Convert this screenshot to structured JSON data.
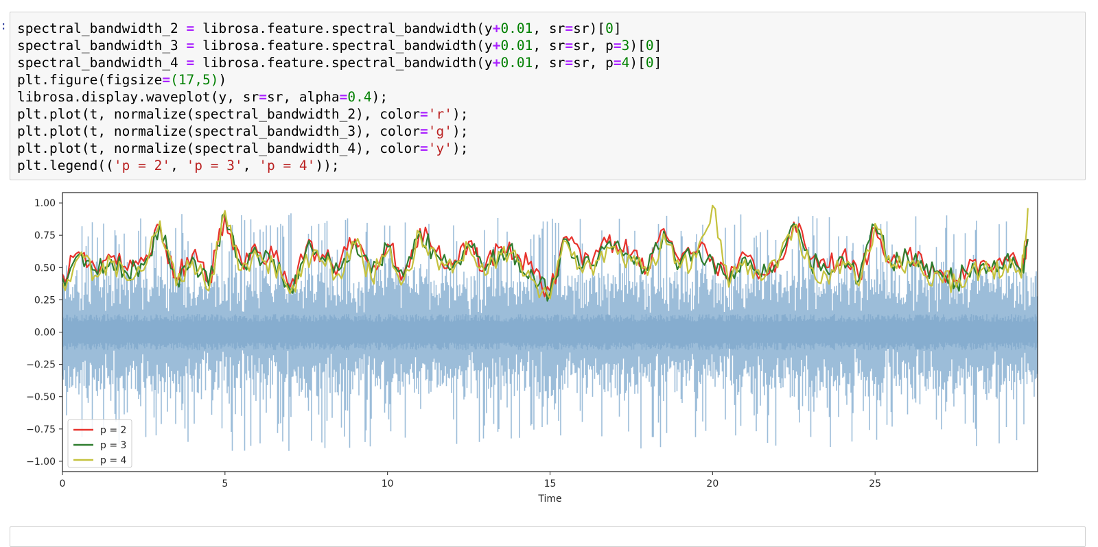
{
  "notebook": {
    "prompt_fragment": ":",
    "code_lines": [
      [
        [
          "n",
          "spectral_bandwidth_2 "
        ],
        [
          "o",
          "="
        ],
        [
          "n",
          " librosa.feature.spectral_bandwidth(y"
        ],
        [
          "o",
          "+"
        ],
        [
          "m",
          "0.01"
        ],
        [
          "n",
          ", sr"
        ],
        [
          "o",
          "="
        ],
        [
          "n",
          "sr)["
        ],
        [
          "m",
          "0"
        ],
        [
          "n",
          "]"
        ]
      ],
      [
        [
          "n",
          "spectral_bandwidth_3 "
        ],
        [
          "o",
          "="
        ],
        [
          "n",
          " librosa.feature.spectral_bandwidth(y"
        ],
        [
          "o",
          "+"
        ],
        [
          "m",
          "0.01"
        ],
        [
          "n",
          ", sr"
        ],
        [
          "o",
          "="
        ],
        [
          "n",
          "sr, p"
        ],
        [
          "o",
          "="
        ],
        [
          "m",
          "3"
        ],
        [
          "n",
          ")["
        ],
        [
          "m",
          "0"
        ],
        [
          "n",
          "]"
        ]
      ],
      [
        [
          "n",
          "spectral_bandwidth_4 "
        ],
        [
          "o",
          "="
        ],
        [
          "n",
          " librosa.feature.spectral_bandwidth(y"
        ],
        [
          "o",
          "+"
        ],
        [
          "m",
          "0.01"
        ],
        [
          "n",
          ", sr"
        ],
        [
          "o",
          "="
        ],
        [
          "n",
          "sr, p"
        ],
        [
          "o",
          "="
        ],
        [
          "m",
          "4"
        ],
        [
          "n",
          ")["
        ],
        [
          "m",
          "0"
        ],
        [
          "n",
          "]"
        ]
      ],
      [
        [
          "n",
          "plt.figure(figsize"
        ],
        [
          "o",
          "="
        ],
        [
          "m",
          "(17,5)"
        ],
        [
          "n",
          ")"
        ]
      ],
      [
        [
          "n",
          "librosa.display.waveplot(y, sr"
        ],
        [
          "o",
          "="
        ],
        [
          "n",
          "sr, alpha"
        ],
        [
          "o",
          "="
        ],
        [
          "m",
          "0.4"
        ],
        [
          "n",
          ");"
        ]
      ],
      [
        [
          "n",
          "plt.plot(t, normalize(spectral_bandwidth_2), color"
        ],
        [
          "o",
          "="
        ],
        [
          "s",
          "'r'"
        ],
        [
          "n",
          ");"
        ]
      ],
      [
        [
          "n",
          "plt.plot(t, normalize(spectral_bandwidth_3), color"
        ],
        [
          "o",
          "="
        ],
        [
          "s",
          "'g'"
        ],
        [
          "n",
          ");"
        ]
      ],
      [
        [
          "n",
          "plt.plot(t, normalize(spectral_bandwidth_4), color"
        ],
        [
          "o",
          "="
        ],
        [
          "s",
          "'y'"
        ],
        [
          "n",
          ");"
        ]
      ],
      [
        [
          "n",
          "plt.legend(("
        ],
        [
          "s",
          "'p = 2'"
        ],
        [
          "n",
          ", "
        ],
        [
          "s",
          "'p = 3'"
        ],
        [
          "n",
          ", "
        ],
        [
          "s",
          "'p = 4'"
        ],
        [
          "n",
          "));"
        ]
      ]
    ]
  },
  "chart_data": {
    "type": "line",
    "title": "",
    "xlabel": "Time",
    "ylabel": "",
    "xlim": [
      0,
      30
    ],
    "ylim": [
      -1.08,
      1.08
    ],
    "xticks": [
      0,
      5,
      10,
      15,
      20,
      25
    ],
    "xtick_labels": [
      "0",
      "5",
      "10",
      "15",
      "20",
      "25"
    ],
    "yticks": [
      1.0,
      0.75,
      0.5,
      0.25,
      0.0,
      -0.25,
      -0.5,
      -0.75,
      -1.0
    ],
    "ytick_labels": [
      "1.00",
      "0.75",
      "0.50",
      "0.25",
      "0.00",
      "−0.25",
      "−0.50",
      "−0.75",
      "−1.00"
    ],
    "legend_position": "lower-left",
    "grid": false,
    "waveform": {
      "color": "#7ba7cc",
      "envelope_approx": {
        "x": [
          0,
          5,
          10,
          15,
          20,
          25,
          29.7
        ],
        "peak": [
          0.85,
          0.95,
          0.9,
          0.88,
          0.92,
          0.9,
          0.95
        ]
      }
    },
    "series": [
      {
        "name": "p = 2",
        "color": "#e8322c",
        "x": [
          0,
          0.5,
          1,
          1.5,
          2,
          2.5,
          3,
          3.5,
          4,
          4.5,
          5,
          5.5,
          6,
          6.5,
          7,
          7.5,
          8,
          8.5,
          9,
          9.5,
          10,
          10.5,
          11,
          11.5,
          12,
          12.5,
          13,
          13.5,
          14,
          14.5,
          15,
          15.5,
          16,
          16.5,
          17,
          17.5,
          18,
          18.5,
          19,
          19.5,
          20,
          20.5,
          21,
          21.5,
          22,
          22.5,
          23,
          23.5,
          24,
          24.5,
          25,
          25.5,
          26,
          26.5,
          27,
          27.5,
          28,
          28.5,
          29,
          29.5,
          29.7
        ],
        "values": [
          0.45,
          0.62,
          0.5,
          0.58,
          0.48,
          0.55,
          0.82,
          0.42,
          0.6,
          0.38,
          0.9,
          0.55,
          0.62,
          0.58,
          0.35,
          0.66,
          0.6,
          0.5,
          0.72,
          0.48,
          0.68,
          0.45,
          0.8,
          0.62,
          0.52,
          0.7,
          0.5,
          0.66,
          0.6,
          0.45,
          0.32,
          0.74,
          0.52,
          0.62,
          0.7,
          0.6,
          0.5,
          0.8,
          0.55,
          0.62,
          0.58,
          0.4,
          0.6,
          0.45,
          0.55,
          0.85,
          0.56,
          0.5,
          0.6,
          0.42,
          0.8,
          0.55,
          0.6,
          0.5,
          0.48,
          0.4,
          0.55,
          0.52,
          0.58,
          0.48,
          0.7
        ]
      },
      {
        "name": "p = 3",
        "color": "#2f7d2f",
        "x": [
          0,
          0.5,
          1,
          1.5,
          2,
          2.5,
          3,
          3.5,
          4,
          4.5,
          5,
          5.5,
          6,
          6.5,
          7,
          7.5,
          8,
          8.5,
          9,
          9.5,
          10,
          10.5,
          11,
          11.5,
          12,
          12.5,
          13,
          13.5,
          14,
          14.5,
          15,
          15.5,
          16,
          16.5,
          17,
          17.5,
          18,
          18.5,
          19,
          19.5,
          20,
          20.5,
          21,
          21.5,
          22,
          22.5,
          23,
          23.5,
          24,
          24.5,
          25,
          25.5,
          26,
          26.5,
          27,
          27.5,
          28,
          28.5,
          29,
          29.5,
          29.7
        ],
        "values": [
          0.42,
          0.6,
          0.48,
          0.56,
          0.45,
          0.52,
          0.84,
          0.4,
          0.58,
          0.36,
          0.92,
          0.52,
          0.6,
          0.56,
          0.33,
          0.64,
          0.58,
          0.48,
          0.7,
          0.46,
          0.66,
          0.43,
          0.78,
          0.6,
          0.5,
          0.68,
          0.48,
          0.64,
          0.58,
          0.43,
          0.3,
          0.72,
          0.5,
          0.6,
          0.68,
          0.58,
          0.48,
          0.78,
          0.53,
          0.6,
          0.56,
          0.38,
          0.58,
          0.43,
          0.53,
          0.84,
          0.54,
          0.48,
          0.58,
          0.4,
          0.82,
          0.53,
          0.58,
          0.48,
          0.46,
          0.38,
          0.53,
          0.5,
          0.56,
          0.46,
          0.72
        ]
      },
      {
        "name": "p = 4",
        "color": "#c5c23e",
        "x": [
          0,
          0.5,
          1,
          1.5,
          2,
          2.5,
          3,
          3.5,
          4,
          4.5,
          5,
          5.5,
          6,
          6.5,
          7,
          7.5,
          8,
          8.5,
          9,
          9.5,
          10,
          10.5,
          11,
          11.5,
          12,
          12.5,
          13,
          13.5,
          14,
          14.5,
          15,
          15.5,
          16,
          16.5,
          17,
          17.5,
          18,
          18.5,
          19,
          19.5,
          20,
          20.5,
          21,
          21.5,
          22,
          22.5,
          23,
          23.5,
          24,
          24.5,
          25,
          25.5,
          26,
          26.5,
          27,
          27.5,
          28,
          28.5,
          29,
          29.5,
          29.7
        ],
        "values": [
          0.38,
          0.58,
          0.44,
          0.54,
          0.4,
          0.48,
          0.86,
          0.36,
          0.55,
          0.32,
          0.94,
          0.48,
          0.58,
          0.52,
          0.3,
          0.6,
          0.55,
          0.45,
          0.68,
          0.42,
          0.62,
          0.4,
          0.76,
          0.58,
          0.46,
          0.66,
          0.44,
          0.6,
          0.55,
          0.4,
          0.26,
          0.7,
          0.46,
          0.56,
          0.66,
          0.55,
          0.44,
          0.76,
          0.5,
          0.58,
          0.98,
          0.35,
          0.56,
          0.4,
          0.5,
          0.82,
          0.5,
          0.44,
          0.55,
          0.36,
          0.84,
          0.5,
          0.55,
          0.44,
          0.42,
          0.35,
          0.5,
          0.47,
          0.52,
          0.42,
          0.96
        ]
      }
    ]
  }
}
